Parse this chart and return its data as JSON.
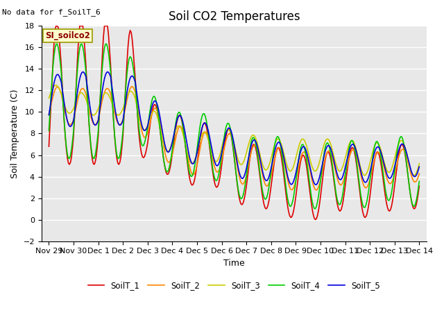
{
  "title": "Soil CO2 Temperatures",
  "xlabel": "Time",
  "ylabel": "Soil Temperature (C)",
  "ylim": [
    -2,
    18
  ],
  "bg_color": "#e8e8e8",
  "fig_color": "#ffffff",
  "annotation_text": "No data for f_SoilT_6",
  "site_label": "SI_soilco2",
  "legend_entries": [
    "SoilT_1",
    "SoilT_2",
    "SoilT_3",
    "SoilT_4",
    "SoilT_5"
  ],
  "line_colors": [
    "#dd0000",
    "#ff8800",
    "#cccc00",
    "#00cc00",
    "#0000dd"
  ],
  "xtick_labels": [
    "Nov 29",
    "Nov 30",
    "Dec 1",
    "Dec 2",
    "Dec 3",
    "Dec 4",
    "Dec 5",
    "Dec 6",
    "Dec 7",
    "Dec 8",
    "Dec 9",
    "Dec 10",
    "Dec 11",
    "Dec 12",
    "Dec 13",
    "Dec 14"
  ],
  "title_fontsize": 12,
  "label_fontsize": 9,
  "tick_fontsize": 8
}
